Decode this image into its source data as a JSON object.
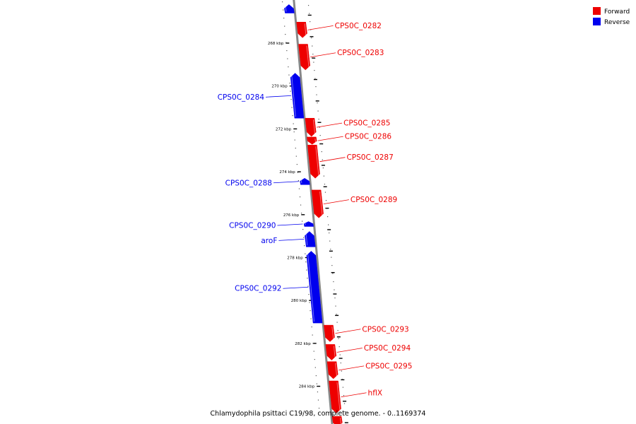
{
  "colors": {
    "forward": "#ee0000",
    "reverse": "#0000ee",
    "backbone": "#888888",
    "background": "#ffffff"
  },
  "legend": {
    "forward_label": "Forward",
    "reverse_label": "Reverse"
  },
  "caption": "Chlamydophila psittaci C19/98, complete genome. - 0..1169374",
  "axis": {
    "unit": "kbp",
    "ticks": [
      {
        "value": 268,
        "label": "268 kbp"
      },
      {
        "value": 270,
        "label": "270 kbp"
      },
      {
        "value": 272,
        "label": "272 kbp"
      },
      {
        "value": 274,
        "label": "274 kbp"
      },
      {
        "value": 276,
        "label": "276 kbp"
      },
      {
        "value": 278,
        "label": "278 kbp"
      },
      {
        "value": 280,
        "label": "280 kbp"
      },
      {
        "value": 282,
        "label": "282 kbp"
      },
      {
        "value": 284,
        "label": "284 kbp"
      }
    ]
  },
  "genes": [
    {
      "name": "",
      "strand": "reverse",
      "start": 266.2,
      "end": 266.6
    },
    {
      "name": "CPS0C_0282",
      "strand": "forward",
      "start": 267.02,
      "end": 267.75
    },
    {
      "name": "CPS0C_0283",
      "strand": "forward",
      "start": 268.05,
      "end": 269.25
    },
    {
      "name": "CPS0C_0284",
      "strand": "reverse",
      "start": 269.4,
      "end": 271.5
    },
    {
      "name": "CPS0C_0285",
      "strand": "forward",
      "start": 271.5,
      "end": 272.35
    },
    {
      "name": "CPS0C_0286",
      "strand": "forward",
      "start": 272.38,
      "end": 272.72
    },
    {
      "name": "CPS0C_0287",
      "strand": "forward",
      "start": 272.75,
      "end": 274.3
    },
    {
      "name": "CPS0C_0288",
      "strand": "reverse",
      "start": 274.3,
      "end": 274.6
    },
    {
      "name": "CPS0C_0289",
      "strand": "forward",
      "start": 274.85,
      "end": 276.15
    },
    {
      "name": "CPS0C_0290",
      "strand": "reverse",
      "start": 276.32,
      "end": 276.55
    },
    {
      "name": "aroF",
      "strand": "reverse",
      "start": 276.78,
      "end": 277.5
    },
    {
      "name": "CPS0C_0292",
      "strand": "reverse",
      "start": 277.7,
      "end": 281.05
    },
    {
      "name": "CPS0C_0293",
      "strand": "forward",
      "start": 281.15,
      "end": 281.92
    },
    {
      "name": "CPS0C_0294",
      "strand": "forward",
      "start": 282.05,
      "end": 282.78
    },
    {
      "name": "CPS0C_0295",
      "strand": "forward",
      "start": 282.85,
      "end": 283.65
    },
    {
      "name": "hflX",
      "strand": "forward",
      "start": 283.75,
      "end": 285.25
    },
    {
      "name": "",
      "strand": "forward",
      "start": 285.4,
      "end": 285.9
    }
  ]
}
